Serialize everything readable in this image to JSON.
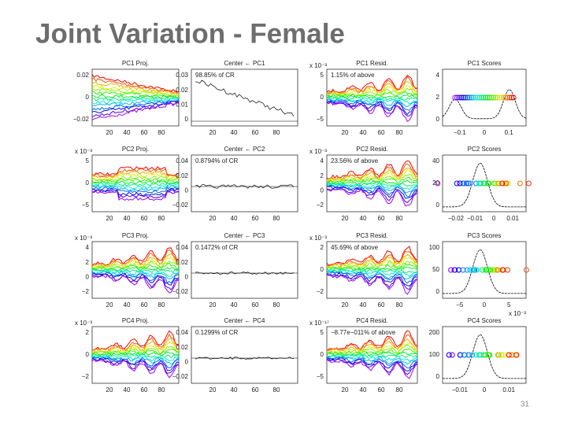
{
  "header": {
    "title": "Joint Variation - Female"
  },
  "footer": {
    "page_number": "31"
  },
  "panels": [
    {
      "title": "PC1 Proj.",
      "yticks": [
        "0.02",
        "0",
        "−0.02"
      ],
      "xticks": [
        "20",
        "40",
        "60",
        "80"
      ]
    },
    {
      "title": "Center ← PC1",
      "note": "98.85% of CR",
      "yticks": [
        "0.03",
        "0.02",
        "0.01",
        "0"
      ],
      "xticks": [
        "20",
        "40",
        "60",
        "80"
      ]
    },
    {
      "title": "PC1 Resid.",
      "exponent": "x 10⁻³",
      "note": "1.15% of above",
      "yticks": [
        "5",
        "0",
        "−5"
      ],
      "xticks": [
        "20",
        "40",
        "60",
        "80"
      ]
    },
    {
      "title": "PC1 Scores",
      "yticks": [
        "4",
        "2",
        "0"
      ],
      "xticks": [
        "−0.1",
        "0",
        "0.1"
      ]
    },
    {
      "title": "PC2 Proj.",
      "exponent": "x 10⁻³",
      "yticks": [
        "5",
        "0",
        "−5"
      ],
      "xticks": [
        "20",
        "40",
        "60",
        "80"
      ]
    },
    {
      "title": "Center ← PC2",
      "note": "0.8794% of CR",
      "yticks": [
        "0.04",
        "0.02",
        "0",
        "−0.02"
      ],
      "xticks": [
        "20",
        "40",
        "60",
        "80"
      ]
    },
    {
      "title": "PC2 Resid.",
      "exponent": "x 10⁻³",
      "note": "23.56% of above",
      "yticks": [
        "4",
        "2",
        "0",
        "−2"
      ],
      "xticks": [
        "20",
        "40",
        "60",
        "80"
      ]
    },
    {
      "title": "PC2 Scores",
      "yticks": [
        "40",
        "20",
        "0"
      ],
      "xticks": [
        "−0.02",
        "−0.01",
        "0",
        "0.01"
      ]
    },
    {
      "title": "PC3 Proj.",
      "exponent": "x 10⁻³",
      "yticks": [
        "4",
        "2",
        "0",
        "−2"
      ],
      "xticks": [
        "20",
        "40",
        "60",
        "80"
      ]
    },
    {
      "title": "Center ← PC3",
      "note": "0.1472% of CR",
      "yticks": [
        "0.04",
        "0.02",
        "0",
        "−0.02"
      ],
      "xticks": [
        "20",
        "40",
        "60",
        "80"
      ]
    },
    {
      "title": "PC3 Resid.",
      "exponent": "x 10⁻³",
      "note": "45.69% of above",
      "yticks": [
        "2",
        "0",
        "−2"
      ],
      "xticks": [
        "20",
        "40",
        "60",
        "80"
      ]
    },
    {
      "title": "PC3 Scores",
      "exponent": "x 10⁻³",
      "yticks": [
        "100",
        "50",
        "0"
      ],
      "xticks": [
        "−5",
        "0",
        "5"
      ]
    },
    {
      "title": "PC4 Proj.",
      "exponent": "x 10⁻³",
      "yticks": [
        "2",
        "0",
        "−2"
      ],
      "xticks": [
        "20",
        "40",
        "60",
        "80"
      ]
    },
    {
      "title": "Center ← PC4",
      "note": "0.1299% of CR",
      "yticks": [
        "0.04",
        "0.02",
        "0",
        "−0.02"
      ],
      "xticks": [
        "20",
        "40",
        "60",
        "80"
      ]
    },
    {
      "title": "PC4 Resid.",
      "exponent": "x 10⁻¹⁷",
      "note": "−8.77e−011% of above",
      "yticks": [
        "5",
        "0",
        "−5"
      ],
      "xticks": [
        "20",
        "40",
        "60",
        "80"
      ]
    },
    {
      "title": "PC4 Scores",
      "yticks": [
        "200",
        "100",
        "0"
      ],
      "xticks": [
        "−0.01",
        "0",
        "0.01"
      ]
    }
  ]
}
